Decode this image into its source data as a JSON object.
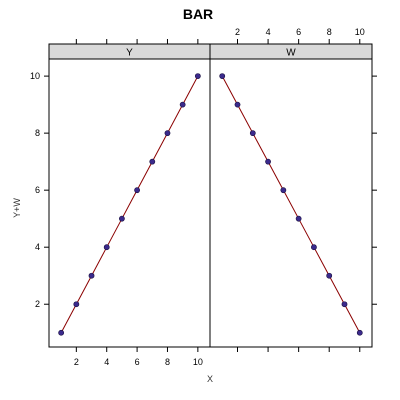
{
  "chart_data": {
    "type": "line",
    "title": "BAR",
    "xlabel": "X",
    "ylabel": "Y+W",
    "xlim": [
      0.2,
      10.8
    ],
    "ylim": [
      0.5,
      10.6
    ],
    "x_ticks": [
      2,
      4,
      6,
      8,
      10
    ],
    "x_tick_labels": [
      "2",
      "4",
      "6",
      "8",
      "10"
    ],
    "y_ticks": [
      2,
      4,
      6,
      8,
      10
    ],
    "y_tick_labels": [
      "2",
      "4",
      "6",
      "8",
      "10"
    ],
    "panels": [
      {
        "strip": "Y",
        "x": [
          1,
          2,
          3,
          4,
          5,
          6,
          7,
          8,
          9,
          10
        ],
        "y": [
          1,
          2,
          3,
          4,
          5,
          6,
          7,
          8,
          9,
          10
        ]
      },
      {
        "strip": "W",
        "x": [
          1,
          2,
          3,
          4,
          5,
          6,
          7,
          8,
          9,
          10
        ],
        "y": [
          10,
          9,
          8,
          7,
          6,
          5,
          4,
          3,
          2,
          1
        ]
      }
    ],
    "line_color": "#8b0000",
    "point_color": "#3b2a8c",
    "strip_color": "#d9d9d9",
    "grid": false,
    "legend": "none"
  }
}
